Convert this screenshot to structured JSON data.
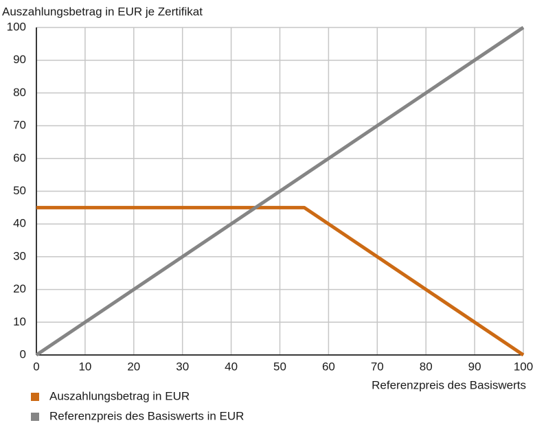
{
  "chart_data": {
    "type": "line",
    "y_label": "Auszahlungsbetrag in EUR je Zertifikat",
    "x_label": "Referenzpreis des Basiswerts",
    "series": [
      {
        "name": "Auszahlungsbetrag in EUR",
        "color": "#cc6a14",
        "x": [
          0,
          55,
          100
        ],
        "values": [
          45,
          45,
          0
        ]
      },
      {
        "name": "Referenzpreis des Basiswerts in EUR",
        "color": "#858585",
        "x": [
          0,
          100
        ],
        "values": [
          0,
          100
        ]
      }
    ],
    "xlim": [
      0,
      100
    ],
    "xticks": [
      0,
      10,
      20,
      30,
      40,
      50,
      60,
      70,
      80,
      90,
      100
    ],
    "ylim": [
      0,
      100
    ],
    "yticks": [
      0,
      10,
      20,
      30,
      40,
      50,
      60,
      70,
      80,
      90,
      100
    ],
    "grid": true
  }
}
